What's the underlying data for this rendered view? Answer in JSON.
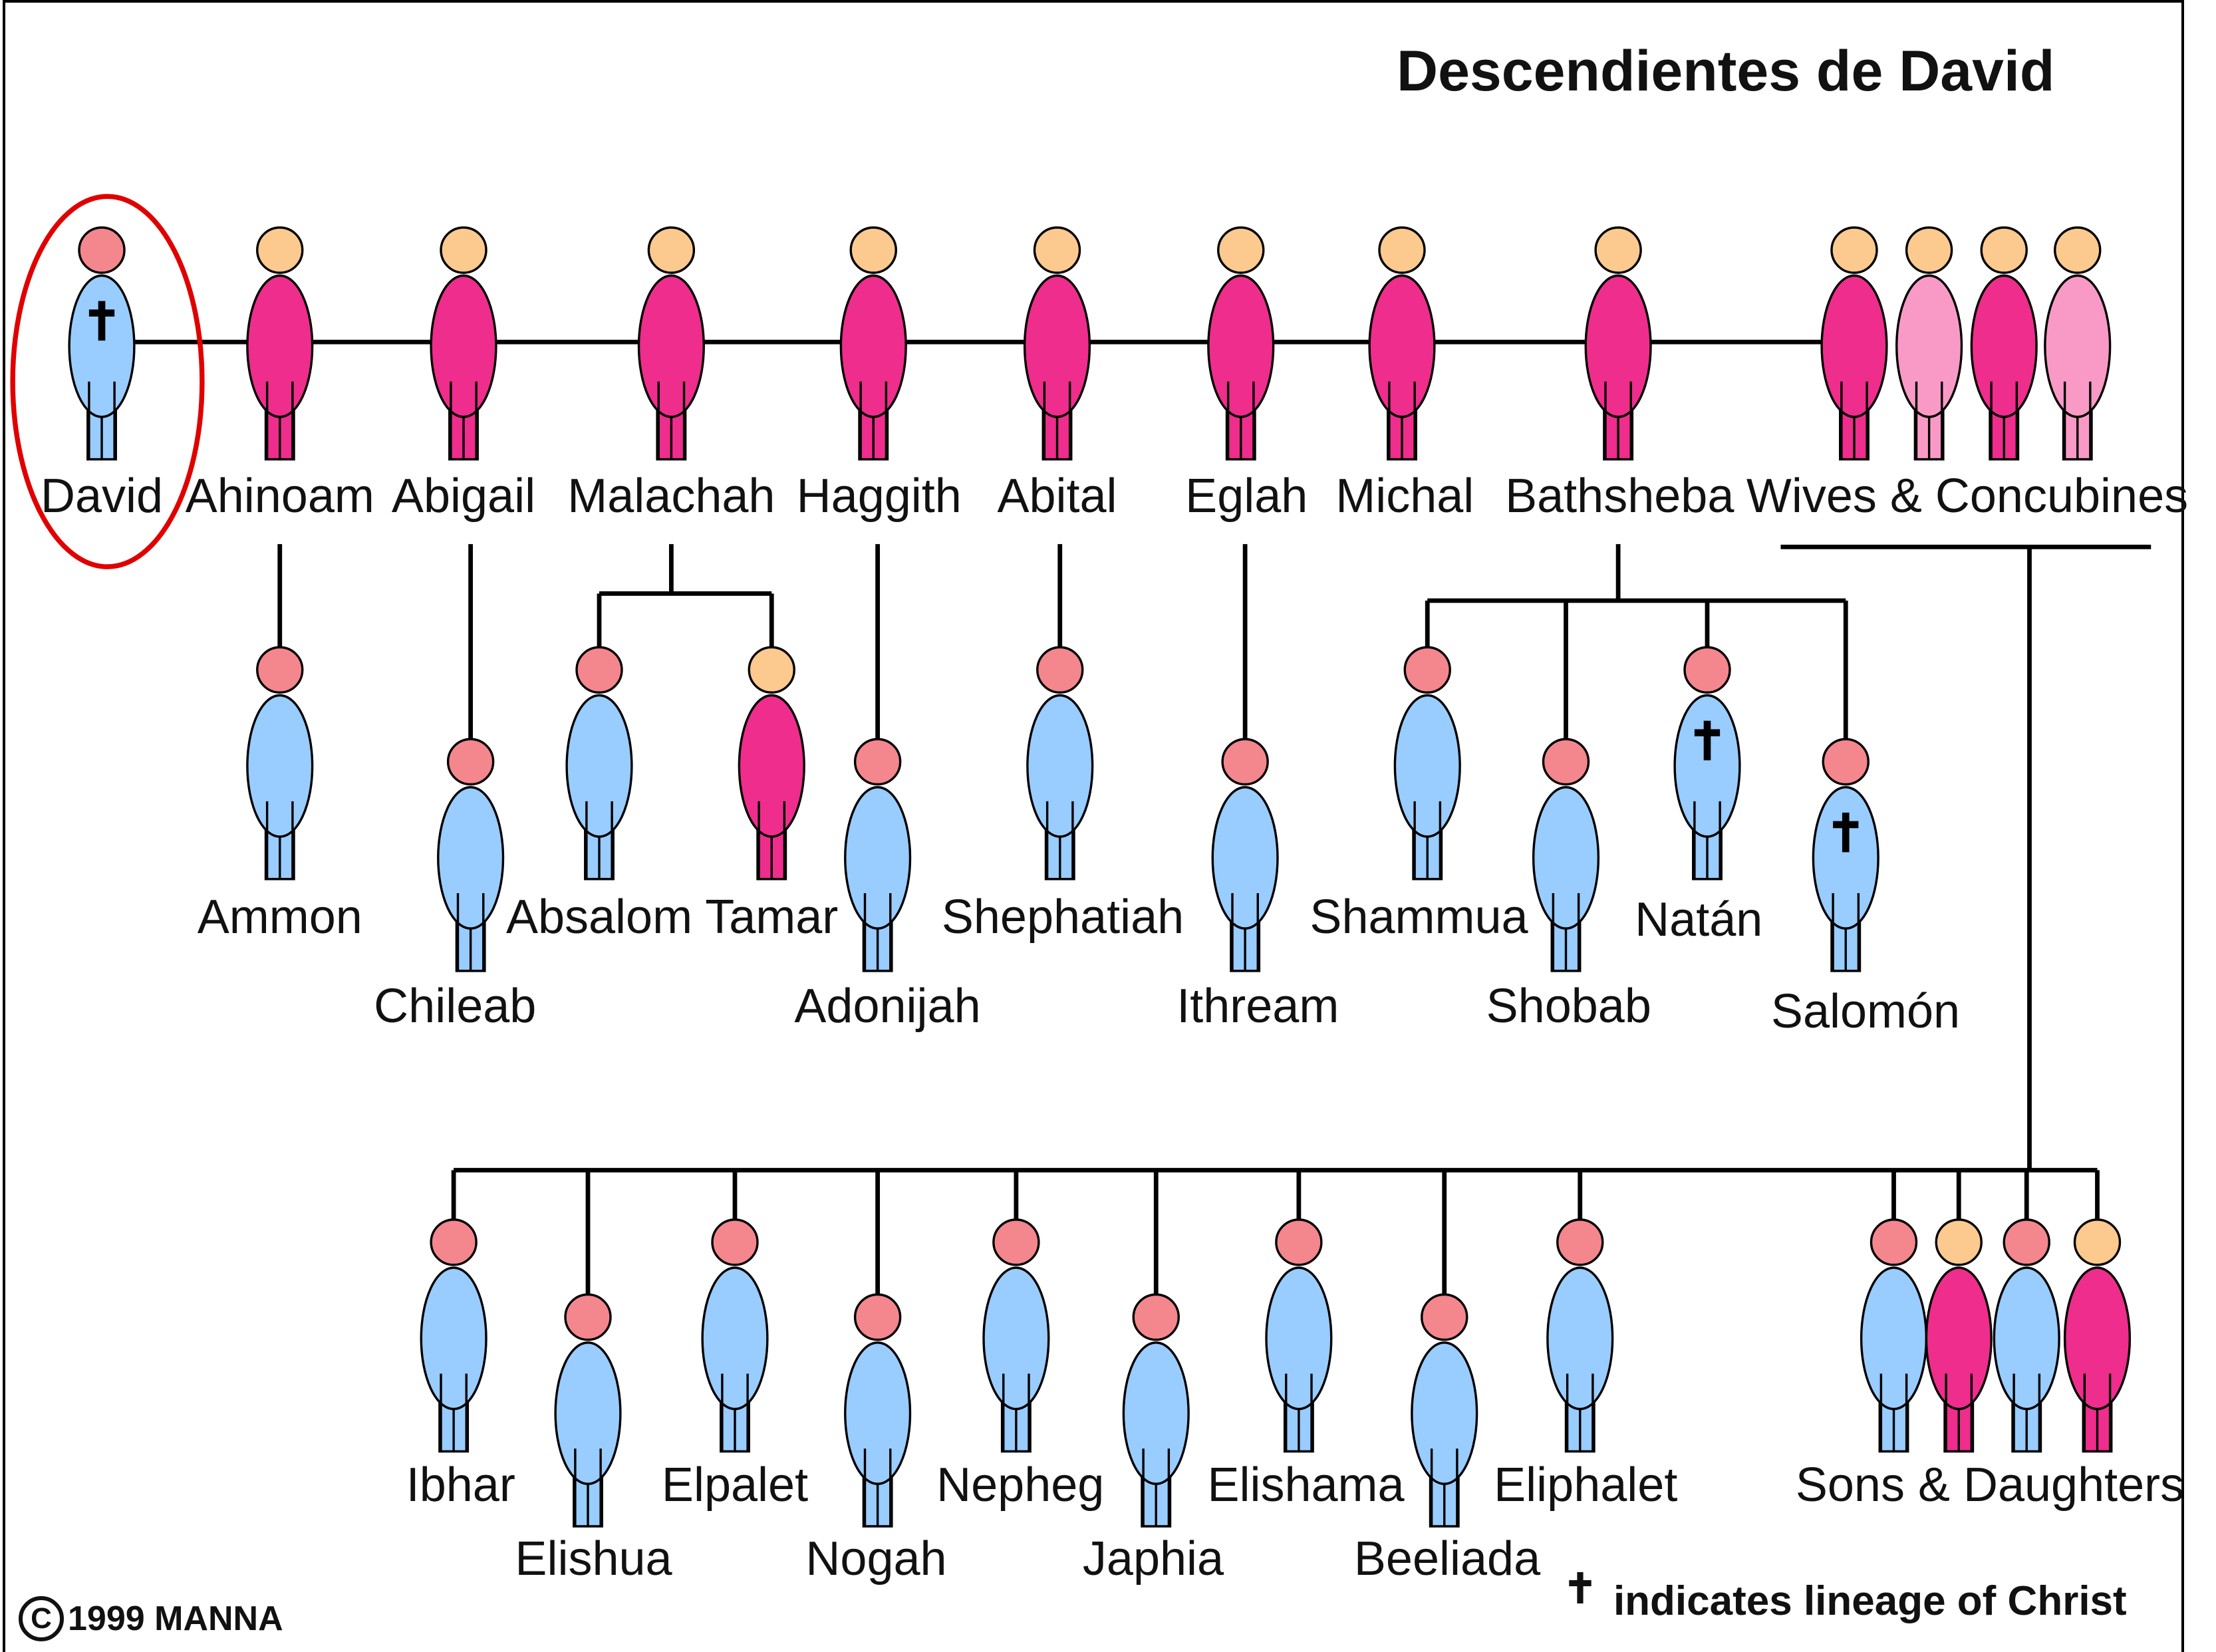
{
  "title": "Descendientes de David",
  "people": [
    {
      "id": "david",
      "name": "David",
      "sex": "m",
      "lineage": true,
      "highlight": true
    },
    {
      "id": "ahinoam",
      "name": "Ahinoam",
      "sex": "f"
    },
    {
      "id": "abigail",
      "name": "Abigail",
      "sex": "f"
    },
    {
      "id": "malachah",
      "name": "Malachah",
      "sex": "f"
    },
    {
      "id": "haggith",
      "name": "Haggith",
      "sex": "f"
    },
    {
      "id": "abital",
      "name": "Abital",
      "sex": "f"
    },
    {
      "id": "eglah",
      "name": "Eglah",
      "sex": "f"
    },
    {
      "id": "michal",
      "name": "Michal",
      "sex": "f"
    },
    {
      "id": "bathsheba",
      "name": "Bathsheba",
      "sex": "f"
    },
    {
      "id": "wives",
      "name": "Wives & Concubines",
      "group": "wives"
    },
    {
      "id": "ammon",
      "name": "Ammon",
      "sex": "m"
    },
    {
      "id": "chileab",
      "name": "Chileab",
      "sex": "m"
    },
    {
      "id": "absalom",
      "name": "Absalom",
      "sex": "m"
    },
    {
      "id": "tamar",
      "name": "Tamar",
      "sex": "f"
    },
    {
      "id": "adonijah",
      "name": "Adonijah",
      "sex": "m"
    },
    {
      "id": "shephatiah",
      "name": "Shephatiah",
      "sex": "m"
    },
    {
      "id": "ithream",
      "name": "Ithream",
      "sex": "m"
    },
    {
      "id": "shammua",
      "name": "Shammua",
      "sex": "m"
    },
    {
      "id": "shobab",
      "name": "Shobab",
      "sex": "m"
    },
    {
      "id": "natan",
      "name": "Natán",
      "sex": "m",
      "lineage": true
    },
    {
      "id": "salomon",
      "name": "Salomón",
      "sex": "m",
      "lineage": true
    },
    {
      "id": "ibhar",
      "name": "Ibhar",
      "sex": "m"
    },
    {
      "id": "elishua",
      "name": "Elishua",
      "sex": "m"
    },
    {
      "id": "elpalet",
      "name": "Elpalet",
      "sex": "m"
    },
    {
      "id": "nogah",
      "name": "Nogah",
      "sex": "m"
    },
    {
      "id": "nepheg",
      "name": "Nepheg",
      "sex": "m"
    },
    {
      "id": "japhia",
      "name": "Japhia",
      "sex": "m"
    },
    {
      "id": "elishama",
      "name": "Elishama",
      "sex": "m"
    },
    {
      "id": "beeliada",
      "name": "Beeliada",
      "sex": "m"
    },
    {
      "id": "eliphalet",
      "name": "Eliphalet",
      "sex": "m"
    },
    {
      "id": "sons",
      "name": "Sons & Daughters",
      "group": "children"
    }
  ],
  "legend": {
    "symbol": "✝",
    "text": "indicates lineage of Christ"
  },
  "copyright": {
    "symbol": "C",
    "text": "1999 MANNA"
  },
  "colors": {
    "male_body": "#99ccff",
    "male_head": "#f4868e",
    "female_body": "#ee2d8c",
    "female_head": "#fcc98e",
    "concubine_body": "#f99ac6",
    "highlight": "#e00000",
    "line": "#000000"
  }
}
